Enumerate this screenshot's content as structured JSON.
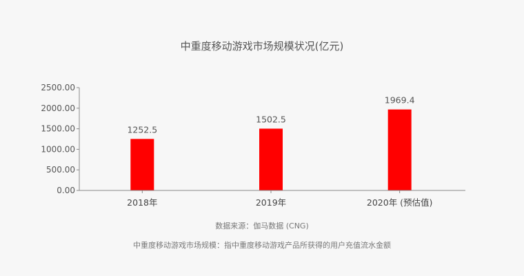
{
  "chart_data": {
    "type": "bar",
    "title": "中重度移动游戏市场规模状况(亿元)",
    "categories": [
      "2018年",
      "2019年",
      "2020年 (预估值)"
    ],
    "values": [
      1252.5,
      1502.5,
      1969.4
    ],
    "value_labels": [
      "1252.5",
      "1502.5",
      "1969.4"
    ],
    "yticks": [
      "0.00",
      "500.00",
      "1000.00",
      "1500.00",
      "2000.00",
      "2500.00"
    ],
    "ylim": [
      0,
      2500
    ],
    "xlabel": "",
    "ylabel": "",
    "grid": false,
    "bar_color": "#ff0000",
    "source": "数据来源：伽马数据 (CNG)",
    "footnote": "中重度移动游戏市场规模：指中重度移动游戏产品所获得的用户充值流水金额"
  }
}
